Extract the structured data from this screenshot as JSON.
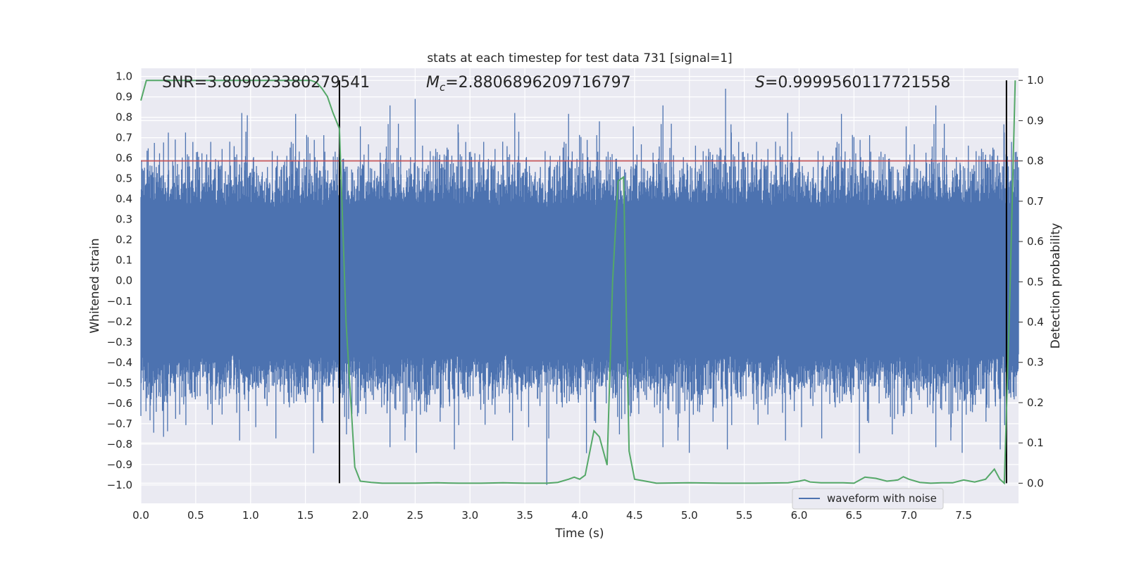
{
  "chart_data": {
    "type": "line",
    "title": "stats at each timestep for test data 731 [signal=1]",
    "xlabel": "Time (s)",
    "ylabel_left": "Whitened strain",
    "ylabel_right": "Detection probability",
    "xlim": [
      0.0,
      8.0
    ],
    "ylim_left": [
      -1.09,
      1.04
    ],
    "ylim_right": [
      -0.05,
      1.03
    ],
    "x_ticks": [
      "0.0",
      "0.5",
      "1.0",
      "1.5",
      "2.0",
      "2.5",
      "3.0",
      "3.5",
      "4.0",
      "4.5",
      "5.0",
      "5.5",
      "6.0",
      "6.5",
      "7.0",
      "7.5"
    ],
    "y_left_ticks": [
      "1.0",
      "0.9",
      "0.8",
      "0.7",
      "0.6",
      "0.5",
      "0.4",
      "0.3",
      "0.2",
      "0.1",
      "0.0",
      "−0.1",
      "−0.2",
      "−0.3",
      "−0.4",
      "−0.5",
      "−0.6",
      "−0.7",
      "−0.8",
      "−0.9",
      "−1.0"
    ],
    "y_right_ticks": [
      "1.0",
      "0.9",
      "0.8",
      "0.7",
      "0.6",
      "0.5",
      "0.4",
      "0.3",
      "0.2",
      "0.1",
      "0.0"
    ],
    "grid": true,
    "legend_position": "lower-right",
    "annotations": {
      "snr": "SNR=3.809023380279541",
      "mc_prefix": "M",
      "mc_sub": "c",
      "mc_value": "=2.8806896209716797",
      "s_prefix": "S",
      "s_value": "=0.9999560117721558"
    },
    "threshold": {
      "axis": "right",
      "value": 0.8,
      "color": "#c44e52"
    },
    "vertical_lines": [
      1.81,
      7.89
    ],
    "series": [
      {
        "name": "waveform with noise",
        "axis": "left",
        "color": "#4c72b0",
        "kind": "noise",
        "sample_rate_hz": 2048,
        "typical_amplitude": 0.42,
        "peak_min": -1.0,
        "peak_max": 0.94
      },
      {
        "axis": "right",
        "color": "#55a868",
        "x": [
          0.0,
          0.05,
          0.1,
          0.2,
          0.3,
          0.5,
          0.8,
          1.0,
          1.2,
          1.4,
          1.55,
          1.6,
          1.65,
          1.7,
          1.75,
          1.81,
          1.87,
          1.95,
          2.0,
          2.1,
          2.2,
          2.5,
          2.7,
          2.9,
          3.1,
          3.3,
          3.5,
          3.7,
          3.8,
          3.9,
          3.95,
          4.0,
          4.05,
          4.13,
          4.18,
          4.25,
          4.3,
          4.35,
          4.4,
          4.45,
          4.5,
          4.6,
          4.7,
          5.0,
          5.3,
          5.6,
          5.9,
          6.0,
          6.05,
          6.1,
          6.2,
          6.4,
          6.5,
          6.6,
          6.7,
          6.8,
          6.9,
          6.95,
          7.0,
          7.1,
          7.2,
          7.3,
          7.4,
          7.5,
          7.6,
          7.7,
          7.78,
          7.83,
          7.87,
          7.92,
          7.97
        ],
        "y": [
          0.95,
          1.0,
          1.0,
          1.0,
          1.0,
          1.0,
          1.0,
          1.0,
          1.0,
          1.0,
          1.0,
          0.995,
          0.98,
          0.96,
          0.92,
          0.88,
          0.4,
          0.04,
          0.005,
          0.002,
          0.0,
          0.0,
          0.001,
          0.0,
          0.0,
          0.001,
          0.0,
          0.0,
          0.002,
          0.01,
          0.015,
          0.01,
          0.02,
          0.13,
          0.115,
          0.045,
          0.5,
          0.75,
          0.76,
          0.08,
          0.01,
          0.005,
          0.0,
          0.001,
          0.0,
          0.0,
          0.001,
          0.005,
          0.008,
          0.003,
          0.001,
          0.001,
          0.0,
          0.015,
          0.012,
          0.005,
          0.008,
          0.016,
          0.01,
          0.002,
          0.0,
          0.001,
          0.001,
          0.008,
          0.003,
          0.01,
          0.035,
          0.01,
          0.0,
          0.45,
          1.0
        ]
      }
    ]
  }
}
